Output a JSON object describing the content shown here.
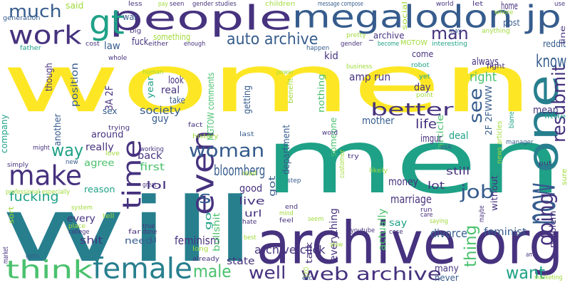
{
  "palette": {
    "yellow": "#fde725",
    "lime": "#a0da39",
    "green": "#4ac16d",
    "teal": "#1fa187",
    "cyan": "#277f8e",
    "blue": "#365c8d",
    "indigo": "#46327e",
    "purple": "#440154"
  },
  "words": [
    {
      "text": "women",
      "color": "yellow"
    },
    {
      "text": "men",
      "color": "teal"
    },
    {
      "text": "will",
      "color": "cyan"
    },
    {
      "text": "archive org",
      "color": "indigo"
    },
    {
      "text": "people",
      "color": "indigo"
    },
    {
      "text": "megalodon jp",
      "color": "blue"
    },
    {
      "text": "one",
      "color": "cyan"
    },
    {
      "text": "even",
      "color": "indigo"
    },
    {
      "text": "time",
      "color": "indigo"
    },
    {
      "text": "work",
      "color": "indigo"
    },
    {
      "text": "make",
      "color": "indigo"
    },
    {
      "text": "female",
      "color": "cyan"
    },
    {
      "text": "think",
      "color": "green"
    },
    {
      "text": "web archive",
      "color": "indigo"
    },
    {
      "text": "now",
      "color": "blue"
    },
    {
      "text": "gt",
      "color": "teal"
    },
    {
      "text": "much",
      "color": "blue"
    },
    {
      "text": "man",
      "color": "indigo"
    },
    {
      "text": "auto archive",
      "color": "blue"
    },
    {
      "text": "better",
      "color": "indigo"
    },
    {
      "text": "woman",
      "color": "blue"
    },
    {
      "text": "resubmit",
      "color": "indigo"
    },
    {
      "text": "see",
      "color": "blue"
    },
    {
      "text": "know",
      "color": "blue"
    },
    {
      "text": "job",
      "color": "blue"
    },
    {
      "text": "going",
      "color": "indigo"
    },
    {
      "text": "want",
      "color": "teal"
    },
    {
      "text": "well",
      "color": "indigo"
    },
    {
      "text": "male",
      "color": "green"
    },
    {
      "text": "way",
      "color": "teal"
    },
    {
      "text": "s",
      "color": "blue"
    },
    {
      "text": "thing",
      "color": "green"
    },
    {
      "text": "life",
      "color": "indigo"
    },
    {
      "text": "right",
      "color": "green"
    },
    {
      "text": "bloomberg",
      "color": "blue"
    },
    {
      "text": "society",
      "color": "blue"
    },
    {
      "text": "archive click",
      "color": "indigo"
    },
    {
      "text": "feminism",
      "color": "indigo"
    },
    {
      "text": "marriage",
      "color": "indigo"
    },
    {
      "text": "feminist",
      "color": "blue"
    },
    {
      "text": "divorce",
      "color": "blue"
    },
    {
      "text": "money",
      "color": "indigo"
    },
    {
      "text": "everything",
      "color": "indigo"
    },
    {
      "text": "actually",
      "color": "green"
    },
    {
      "text": "amp run",
      "color": "indigo"
    },
    {
      "text": "MGTOW comments",
      "color": "green"
    },
    {
      "text": "fucking",
      "color": "teal"
    },
    {
      "text": "guy",
      "color": "blue"
    },
    {
      "text": "mother",
      "color": "blue"
    },
    {
      "text": "department",
      "color": "blue"
    },
    {
      "text": "nothing",
      "color": "green"
    },
    {
      "text": "someone",
      "color": "green"
    },
    {
      "text": "article",
      "color": "green"
    },
    {
      "text": "imgur",
      "color": "indigo"
    },
    {
      "text": "deal",
      "color": "teal"
    },
    {
      "text": "said",
      "color": "lime"
    },
    {
      "text": "war",
      "color": "blue"
    },
    {
      "text": "something",
      "color": "lime"
    },
    {
      "text": "_archive",
      "color": "indigo"
    },
    {
      "text": "post",
      "color": "blue"
    },
    {
      "text": "home",
      "color": "indigo"
    },
    {
      "text": "mean",
      "color": "indigo"
    },
    {
      "text": "always",
      "color": "indigo"
    },
    {
      "text": "come",
      "color": "indigo"
    },
    {
      "text": "kid",
      "color": "indigo"
    },
    {
      "text": "law",
      "color": "blue"
    },
    {
      "text": "fuck",
      "color": "indigo"
    },
    {
      "text": "though",
      "color": "indigo"
    },
    {
      "text": "position",
      "color": "blue"
    },
    {
      "text": "3A 2F",
      "color": "indigo"
    },
    {
      "text": "look",
      "color": "indigo"
    },
    {
      "text": "real",
      "color": "indigo"
    },
    {
      "text": "take",
      "color": "blue"
    },
    {
      "text": "year",
      "color": "teal"
    },
    {
      "text": "sex",
      "color": "blue"
    },
    {
      "text": "getting",
      "color": "blue"
    },
    {
      "text": "2F 2FWWW",
      "color": "blue"
    },
    {
      "text": "day",
      "color": "indigo"
    },
    {
      "text": "reddit",
      "color": "blue"
    },
    {
      "text": "company",
      "color": "teal"
    },
    {
      "text": "another",
      "color": "blue"
    },
    {
      "text": "around",
      "color": "indigo"
    },
    {
      "text": "really",
      "color": "indigo"
    },
    {
      "text": "agree",
      "color": "green"
    },
    {
      "text": "back",
      "color": "indigo"
    },
    {
      "text": "first",
      "color": "green"
    },
    {
      "text": "reason",
      "color": "teal"
    },
    {
      "text": "lol",
      "color": "indigo"
    },
    {
      "text": "need",
      "color": "blue"
    },
    {
      "text": "every",
      "color": "indigo"
    },
    {
      "text": "shit",
      "color": "indigo"
    },
    {
      "text": "go",
      "color": "teal"
    },
    {
      "text": "bullshit",
      "color": "green"
    },
    {
      "text": "state",
      "color": "indigo"
    },
    {
      "text": "live",
      "color": "indigo"
    },
    {
      "text": "url",
      "color": "indigo"
    },
    {
      "text": "good",
      "color": "indigo"
    },
    {
      "text": "got",
      "color": "blue"
    },
    {
      "text": "lot",
      "color": "indigo"
    },
    {
      "text": "say",
      "color": "teal"
    },
    {
      "text": "still",
      "color": "indigo"
    },
    {
      "text": "many",
      "color": "indigo"
    },
    {
      "text": "never",
      "color": "blue"
    },
    {
      "text": "talk",
      "color": "indigo"
    },
    {
      "text": "without",
      "color": "indigo"
    },
    {
      "text": "problem",
      "color": "indigo"
    },
    {
      "text": "fight",
      "color": "indigo"
    },
    {
      "text": "MGTOW",
      "color": "lime"
    },
    {
      "text": "u",
      "color": "blue"
    },
    {
      "text": "less",
      "color": "indigo"
    },
    {
      "text": "seen",
      "color": "indigo"
    },
    {
      "text": "gender studies",
      "color": "indigo"
    },
    {
      "text": "children",
      "color": "lime"
    },
    {
      "text": "message compose",
      "color": "blue"
    },
    {
      "text": "social",
      "color": "lime"
    },
    {
      "text": "world",
      "color": "indigo"
    },
    {
      "text": "let",
      "color": "indigo"
    },
    {
      "text": "use",
      "color": "indigo"
    },
    {
      "text": "generation",
      "color": "blue"
    },
    {
      "text": "big",
      "color": "indigo"
    },
    {
      "text": "either",
      "color": "indigo"
    },
    {
      "text": "enough",
      "color": "indigo"
    },
    {
      "text": "gender",
      "color": "indigo"
    },
    {
      "text": "become",
      "color": "teal"
    },
    {
      "text": "interesting",
      "color": "teal"
    },
    {
      "text": "whole",
      "color": "indigo"
    },
    {
      "text": "father",
      "color": "teal"
    },
    {
      "text": "happen",
      "color": "blue"
    },
    {
      "text": "robot",
      "color": "teal"
    },
    {
      "text": "anything",
      "color": "lime"
    },
    {
      "text": "may",
      "color": "blue"
    },
    {
      "text": "whore",
      "color": "lime"
    },
    {
      "text": "line",
      "color": "indigo"
    },
    {
      "text": "pretty",
      "color": "lime"
    },
    {
      "text": "cost",
      "color": "indigo"
    },
    {
      "text": "business",
      "color": "lime"
    },
    {
      "text": "power",
      "color": "lime"
    },
    {
      "text": "human",
      "color": "lime"
    },
    {
      "text": "benefit",
      "color": "lime"
    },
    {
      "text": "fact",
      "color": "indigo"
    },
    {
      "text": "history",
      "color": "lime"
    },
    {
      "text": "last",
      "color": "blue"
    },
    {
      "text": "trying",
      "color": "indigo"
    },
    {
      "text": "working",
      "color": "indigo"
    },
    {
      "text": "love",
      "color": "lime"
    },
    {
      "text": "word",
      "color": "indigo"
    },
    {
      "text": "customer",
      "color": "lime"
    },
    {
      "text": "ask",
      "color": "blue"
    },
    {
      "text": "manager",
      "color": "blue"
    },
    {
      "text": "likely",
      "color": "lime"
    },
    {
      "text": "point",
      "color": "lime"
    },
    {
      "text": "little",
      "color": "teal"
    },
    {
      "text": "news articles",
      "color": "lime"
    },
    {
      "text": "sure",
      "color": "lime"
    },
    {
      "text": "put",
      "color": "indigo"
    },
    {
      "text": "simply",
      "color": "indigo"
    },
    {
      "text": "new",
      "color": "blue"
    },
    {
      "text": "might",
      "color": "indigo"
    },
    {
      "text": "read",
      "color": "lime"
    },
    {
      "text": "step",
      "color": "blue"
    },
    {
      "text": "great",
      "color": "indigo"
    },
    {
      "text": "professional especially",
      "color": "lime"
    },
    {
      "text": "sort",
      "color": "lime"
    },
    {
      "text": "system",
      "color": "lime"
    },
    {
      "text": "place",
      "color": "lime"
    },
    {
      "text": "college",
      "color": "indigo"
    },
    {
      "text": "far",
      "color": "indigo"
    },
    {
      "text": "true",
      "color": "indigo"
    },
    {
      "text": "done",
      "color": "indigo"
    },
    {
      "text": "mind",
      "color": "lime"
    },
    {
      "text": "feel",
      "color": "indigo"
    },
    {
      "text": "hate",
      "color": "indigo"
    },
    {
      "text": "end",
      "color": "indigo"
    },
    {
      "text": "seem",
      "color": "lime"
    },
    {
      "text": "youtube",
      "color": "indigo"
    },
    {
      "text": "case",
      "color": "indigo"
    },
    {
      "text": "run",
      "color": "indigo"
    },
    {
      "text": "care",
      "color": "indigo"
    },
    {
      "text": "saying",
      "color": "lime"
    },
    {
      "text": "maybe",
      "color": "indigo"
    },
    {
      "text": "amp",
      "color": "indigo"
    },
    {
      "text": "gets",
      "color": "blue"
    },
    {
      "text": "long",
      "color": "lime"
    },
    {
      "text": "already",
      "color": "indigo"
    },
    {
      "text": "best",
      "color": "lime"
    },
    {
      "text": "show",
      "color": "lime"
    },
    {
      "text": "market",
      "color": "indigo"
    },
    {
      "text": "etc",
      "color": "blue"
    },
    {
      "text": "CEO",
      "color": "lime"
    },
    {
      "text": "marketing",
      "color": "lime"
    },
    {
      "text": "pay",
      "color": "lime"
    },
    {
      "text": "blame",
      "color": "teal"
    },
    {
      "text": "tell",
      "color": "lime"
    },
    {
      "text": "yet",
      "color": "teal"
    },
    {
      "text": "try",
      "color": "indigo"
    }
  ]
}
